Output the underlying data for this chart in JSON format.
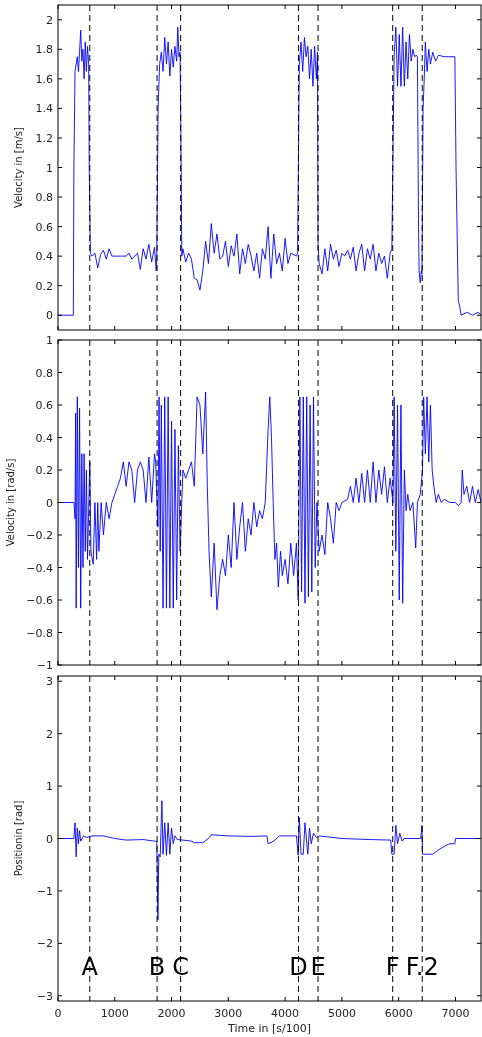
{
  "chart_data": [
    {
      "type": "line",
      "ylabel": "Velocity in [m/s]",
      "xlim": [
        0,
        7450
      ],
      "ylim": [
        -0.1,
        2.1
      ],
      "xticks": [
        0,
        1000,
        2000,
        3000,
        4000,
        5000,
        6000,
        7000
      ],
      "yticks": [
        0,
        0.2,
        0.4,
        0.6,
        0.8,
        1,
        1.2,
        1.4,
        1.6,
        1.8,
        2
      ],
      "tick_labels": "y",
      "grid": false,
      "x": [
        0,
        270,
        280,
        300,
        320,
        340,
        360,
        380,
        400,
        420,
        440,
        460,
        480,
        500,
        520,
        540,
        550,
        570,
        600,
        650,
        700,
        750,
        800,
        850,
        900,
        950,
        1000,
        1100,
        1200,
        1250,
        1300,
        1400,
        1450,
        1500,
        1550,
        1600,
        1650,
        1700,
        1730,
        1740,
        1763,
        1790,
        1820,
        1850,
        1880,
        1910,
        1940,
        1970,
        2000,
        2030,
        2060,
        2090,
        2110,
        2130,
        2150,
        2170,
        2180,
        2200,
        2250,
        2300,
        2350,
        2400,
        2450,
        2500,
        2550,
        2600,
        2650,
        2700,
        2750,
        2800,
        2850,
        2900,
        2950,
        3000,
        3050,
        3100,
        3150,
        3200,
        3250,
        3300,
        3350,
        3400,
        3450,
        3500,
        3550,
        3600,
        3650,
        3700,
        3750,
        3800,
        3850,
        3900,
        3950,
        4000,
        4050,
        4100,
        4200,
        4220,
        4250,
        4280,
        4310,
        4340,
        4370,
        4400,
        4430,
        4460,
        4490,
        4520,
        4550,
        4570,
        4580,
        4600,
        4650,
        4700,
        4750,
        4800,
        4850,
        4900,
        4950,
        5000,
        5050,
        5100,
        5150,
        5200,
        5250,
        5300,
        5350,
        5400,
        5450,
        5500,
        5550,
        5600,
        5650,
        5700,
        5750,
        5800,
        5850,
        5880,
        5920,
        5950,
        5980,
        6010,
        6040,
        6070,
        6100,
        6130,
        6160,
        6190,
        6220,
        6250,
        6280,
        6310,
        6330,
        6350,
        6360,
        6380,
        6400,
        6410,
        6430,
        6450,
        6470,
        6500,
        6530,
        6560,
        6600,
        6650,
        6700,
        6800,
        6900,
        6990,
        7010,
        7050,
        7080,
        7100,
        7200,
        7300,
        7400,
        7450
      ],
      "series": [
        {
          "color": "#0000ff",
          "values": [
            0,
            0,
            1.0,
            1.65,
            1.7,
            1.75,
            1.65,
            1.78,
            1.93,
            1.72,
            1.8,
            1.6,
            1.85,
            1.65,
            1.82,
            1.7,
            1.0,
            0.42,
            0.4,
            0.42,
            0.32,
            0.41,
            0.44,
            0.38,
            0.45,
            0.4,
            0.4,
            0.4,
            0.4,
            0.42,
            0.38,
            0.42,
            0.31,
            0.45,
            0.38,
            0.48,
            0.36,
            0.46,
            0.3,
            0.4,
            1.4,
            1.7,
            1.78,
            1.65,
            1.88,
            1.7,
            1.85,
            1.62,
            1.8,
            1.68,
            1.82,
            1.72,
            1.95,
            1.75,
            1.78,
            1.0,
            0.4,
            0.45,
            0.36,
            0.42,
            0.38,
            0.25,
            0.24,
            0.17,
            0.3,
            0.5,
            0.35,
            0.62,
            0.42,
            0.55,
            0.38,
            0.4,
            0.5,
            0.33,
            0.47,
            0.4,
            0.55,
            0.28,
            0.45,
            0.35,
            0.48,
            0.4,
            0.3,
            0.42,
            0.25,
            0.45,
            0.38,
            0.6,
            0.25,
            0.55,
            0.35,
            0.42,
            0.3,
            0.52,
            0.35,
            0.42,
            0.4,
            0.42,
            1.7,
            1.85,
            1.65,
            1.88,
            1.75,
            1.82,
            1.6,
            1.8,
            1.55,
            1.82,
            1.6,
            1.78,
            0.48,
            0.35,
            0.28,
            0.45,
            0.3,
            0.48,
            0.38,
            0.44,
            0.33,
            0.42,
            0.4,
            0.44,
            0.38,
            0.46,
            0.3,
            0.42,
            0.48,
            0.3,
            0.45,
            0.38,
            0.48,
            0.3,
            0.42,
            0.35,
            0.4,
            0.25,
            0.42,
            0.45,
            1.75,
            1.95,
            1.55,
            1.9,
            1.55,
            1.95,
            1.55,
            1.85,
            1.6,
            1.9,
            1.72,
            1.8,
            1.75,
            1.76,
            1.75,
            0.6,
            0.3,
            0.22,
            0.3,
            0.28,
            1.4,
            1.6,
            1.85,
            1.65,
            1.8,
            1.7,
            1.78,
            1.72,
            1.76,
            1.75,
            1.75,
            1.75,
            1.0,
            0.1,
            0.05,
            0.0,
            0.02,
            0.0,
            0.02,
            0.0
          ]
        }
      ],
      "ref_lines": [
        {
          "axis": "x",
          "value": 560,
          "color": "#000000",
          "line_style": "dashed"
        },
        {
          "axis": "x",
          "value": 1745,
          "color": "#000000",
          "line_style": "dashed"
        },
        {
          "axis": "x",
          "value": 2160,
          "color": "#000000",
          "line_style": "dashed"
        },
        {
          "axis": "x",
          "value": 4235,
          "color": "#000000",
          "line_style": "dashed"
        },
        {
          "axis": "x",
          "value": 4580,
          "color": "#000000",
          "line_style": "dashed"
        },
        {
          "axis": "x",
          "value": 5895,
          "color": "#000000",
          "line_style": "dashed"
        },
        {
          "axis": "x",
          "value": 6415,
          "color": "#000000",
          "line_style": "dashed"
        }
      ]
    },
    {
      "type": "line",
      "ylabel": "Velocity in [rad/s]",
      "xlim": [
        0,
        7450
      ],
      "ylim": [
        -1,
        1
      ],
      "xticks": [
        0,
        1000,
        2000,
        3000,
        4000,
        5000,
        6000,
        7000
      ],
      "yticks": [
        -1,
        -0.8,
        -0.6,
        -0.4,
        -0.2,
        0,
        0.2,
        0.4,
        0.6,
        0.8,
        1
      ],
      "tick_labels": "y",
      "grid": false,
      "x": [
        0,
        280,
        300,
        310,
        320,
        340,
        360,
        380,
        400,
        420,
        440,
        460,
        480,
        500,
        520,
        560,
        580,
        620,
        650,
        680,
        700,
        720,
        760,
        800,
        850,
        900,
        950,
        1000,
        1050,
        1100,
        1150,
        1200,
        1250,
        1300,
        1350,
        1400,
        1450,
        1500,
        1550,
        1600,
        1650,
        1700,
        1720,
        1760,
        1780,
        1800,
        1820,
        1850,
        1880,
        1910,
        1940,
        1970,
        2000,
        2030,
        2060,
        2090,
        2120,
        2150,
        2180,
        2200,
        2250,
        2300,
        2350,
        2400,
        2450,
        2500,
        2550,
        2600,
        2630,
        2660,
        2700,
        2750,
        2800,
        2850,
        2900,
        2950,
        3000,
        3050,
        3100,
        3150,
        3200,
        3250,
        3300,
        3350,
        3400,
        3450,
        3500,
        3550,
        3600,
        3650,
        3700,
        3730,
        3760,
        3790,
        3820,
        3850,
        3880,
        3920,
        3950,
        4000,
        4050,
        4100,
        4150,
        4200,
        4230,
        4260,
        4290,
        4320,
        4350,
        4380,
        4410,
        4440,
        4470,
        4500,
        4530,
        4560,
        4600,
        4650,
        4700,
        4750,
        4800,
        4850,
        4900,
        4950,
        5000,
        5100,
        5150,
        5200,
        5250,
        5300,
        5350,
        5400,
        5450,
        5500,
        5550,
        5600,
        5650,
        5700,
        5750,
        5800,
        5850,
        5900,
        5920,
        5950,
        5980,
        6010,
        6040,
        6070,
        6100,
        6130,
        6160,
        6200,
        6250,
        6300,
        6330,
        6380,
        6420,
        6440,
        6470,
        6500,
        6530,
        6560,
        6590,
        6620,
        6660,
        6700,
        6750,
        6800,
        6900,
        7000,
        7050,
        7100,
        7120,
        7150,
        7200,
        7250,
        7300,
        7350,
        7400,
        7450
      ],
      "series": [
        {
          "color": "#0000ff",
          "values": [
            0,
            0,
            -0.1,
            0.55,
            -0.65,
            0.65,
            -0.4,
            0.58,
            -0.65,
            0.3,
            -0.4,
            0.3,
            -0.3,
            0.2,
            -0.35,
            0.25,
            -0.3,
            -0.38,
            0.0,
            -0.35,
            0.0,
            -0.3,
            0.0,
            -0.2,
            0.0,
            -0.1,
            0.0,
            0.05,
            0.1,
            0.15,
            0.25,
            0.1,
            0.25,
            0.2,
            0.0,
            0.2,
            0.25,
            0.2,
            0.0,
            0.28,
            0.0,
            0.3,
            0.25,
            -0.15,
            0.65,
            -0.3,
            0.6,
            -0.65,
            0.65,
            -0.65,
            0.65,
            -0.65,
            0.5,
            -0.65,
            0.45,
            -0.6,
            0.35,
            -0.3,
            0.0,
            0.2,
            0.15,
            0.2,
            0.25,
            0.1,
            0.65,
            0.6,
            0.3,
            0.68,
            0.1,
            -0.3,
            -0.58,
            -0.25,
            -0.66,
            -0.45,
            -0.35,
            -0.45,
            -0.2,
            -0.4,
            0.0,
            -0.35,
            -0.15,
            0.0,
            -0.3,
            -0.1,
            -0.2,
            0.0,
            -0.15,
            -0.05,
            -0.1,
            0.0,
            0.45,
            0.65,
            0.4,
            0.0,
            -0.35,
            -0.25,
            -0.52,
            -0.3,
            -0.45,
            -0.35,
            -0.5,
            -0.25,
            -0.45,
            -0.25,
            -0.6,
            0.65,
            -0.55,
            0.65,
            -0.62,
            0.65,
            -0.58,
            0.6,
            -0.55,
            0.65,
            -0.4,
            0.0,
            -0.3,
            -0.2,
            -0.32,
            0.0,
            -0.1,
            -0.25,
            0.0,
            -0.05,
            0.0,
            0.02,
            0.1,
            0.0,
            0.15,
            0.0,
            0.18,
            0.0,
            0.2,
            0.0,
            0.25,
            0.0,
            0.2,
            0.05,
            0.22,
            0.0,
            0.15,
            0.0,
            0.65,
            -0.3,
            0.6,
            -0.6,
            0.6,
            -0.62,
            0.2,
            -0.05,
            0.05,
            -0.05,
            0.0,
            -0.28,
            0.0,
            0.05,
            0.2,
            0.65,
            0.3,
            0.65,
            0.25,
            0.6,
            0.2,
            0.1,
            0.0,
            0.05,
            0.0,
            0.02,
            0.0,
            0.0,
            -0.02,
            0.0,
            0.2,
            0.05,
            0.1,
            0.0,
            0.1,
            0.0,
            0.08,
            0.0
          ]
        }
      ],
      "ref_lines": [
        {
          "axis": "x",
          "value": 560,
          "color": "#000000",
          "line_style": "dashed"
        },
        {
          "axis": "x",
          "value": 1745,
          "color": "#000000",
          "line_style": "dashed"
        },
        {
          "axis": "x",
          "value": 2160,
          "color": "#000000",
          "line_style": "dashed"
        },
        {
          "axis": "x",
          "value": 4235,
          "color": "#000000",
          "line_style": "dashed"
        },
        {
          "axis": "x",
          "value": 4580,
          "color": "#000000",
          "line_style": "dashed"
        },
        {
          "axis": "x",
          "value": 5895,
          "color": "#000000",
          "line_style": "dashed"
        },
        {
          "axis": "x",
          "value": 6415,
          "color": "#000000",
          "line_style": "dashed"
        }
      ]
    },
    {
      "type": "line",
      "xlabel": "Time in [s/100]",
      "ylabel": "Positionin [rad]",
      "xlim": [
        0,
        7450
      ],
      "ylim": [
        -3.1,
        3.1
      ],
      "xticks": [
        0,
        1000,
        2000,
        3000,
        4000,
        5000,
        6000,
        7000
      ],
      "yticks": [
        -3,
        -2,
        -1,
        0,
        1,
        2,
        3
      ],
      "grid": false,
      "x": [
        0,
        280,
        300,
        320,
        340,
        360,
        380,
        400,
        450,
        500,
        600,
        800,
        1000,
        1200,
        1500,
        1700,
        1740,
        1760,
        1775,
        1800,
        1830,
        1850,
        1880,
        1910,
        1940,
        1970,
        2000,
        2030,
        2060,
        2100,
        2200,
        2350,
        2400,
        2550,
        2650,
        2700,
        3000,
        3400,
        3680,
        3700,
        3800,
        3900,
        4200,
        4230,
        4250,
        4280,
        4320,
        4350,
        4400,
        4430,
        4460,
        4500,
        4550,
        4600,
        5000,
        5500,
        5860,
        5880,
        5920,
        5950,
        5980,
        6020,
        6060,
        6100,
        6390,
        6410,
        6420,
        6500,
        6600,
        6700,
        6800,
        6900,
        6990,
        7000,
        7450
      ],
      "series": [
        {
          "color": "#0000ff",
          "values": [
            0,
            0,
            0.3,
            -0.35,
            0.2,
            -0.1,
            0.15,
            -0.05,
            0.05,
            0.02,
            0.05,
            0.05,
            0.0,
            -0.03,
            -0.02,
            -0.05,
            -0.05,
            -1.55,
            -0.3,
            -0.35,
            0.72,
            -0.3,
            0.3,
            -0.32,
            0.3,
            -0.3,
            0.2,
            -0.1,
            0.05,
            -0.02,
            -0.03,
            -0.05,
            -0.08,
            -0.08,
            0.0,
            0.07,
            0.05,
            0.04,
            0.05,
            -0.1,
            -0.05,
            0.05,
            0.05,
            -0.32,
            0.4,
            -0.3,
            -0.3,
            0.3,
            -0.3,
            0.2,
            -0.1,
            0.1,
            0.02,
            0.05,
            0.0,
            -0.02,
            -0.03,
            -0.3,
            -0.3,
            0.25,
            -0.1,
            0.1,
            -0.05,
            0.0,
            0.0,
            0.25,
            -0.3,
            -0.3,
            -0.3,
            -0.22,
            -0.15,
            -0.1,
            -0.1,
            0.0,
            0.0
          ]
        }
      ],
      "ref_lines": [
        {
          "axis": "x",
          "value": 560,
          "label": "A",
          "color": "#000000",
          "line_style": "dashed"
        },
        {
          "axis": "x",
          "value": 1745,
          "label": "B",
          "color": "#000000",
          "line_style": "dashed"
        },
        {
          "axis": "x",
          "value": 2160,
          "label": "C",
          "color": "#000000",
          "line_style": "dashed"
        },
        {
          "axis": "x",
          "value": 4235,
          "label": "D",
          "color": "#000000",
          "line_style": "dashed"
        },
        {
          "axis": "x",
          "value": 4580,
          "label": "E",
          "color": "#000000",
          "line_style": "dashed"
        },
        {
          "axis": "x",
          "value": 5895,
          "label": "F",
          "color": "#000000",
          "line_style": "dashed"
        },
        {
          "axis": "x",
          "value": 6415,
          "label": "F.2",
          "color": "#000000",
          "line_style": "dashed"
        }
      ]
    }
  ]
}
